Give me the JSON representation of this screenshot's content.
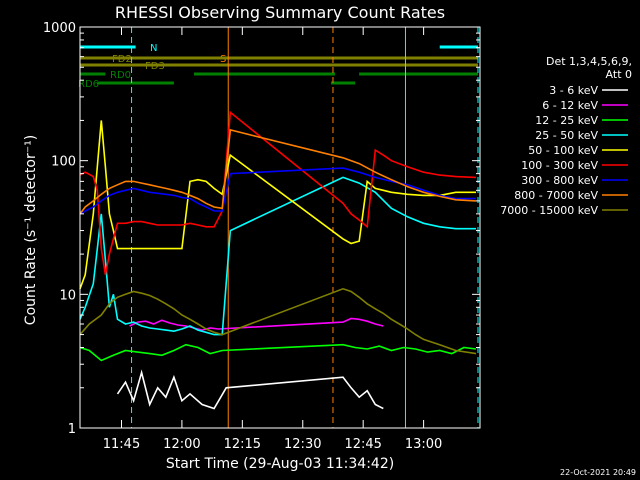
{
  "chart_data": {
    "type": "line",
    "title": "RHESSI Observing Summary Count Rates",
    "xlabel": "Start Time (29-Aug-03 11:34:42)",
    "ylabel": "Count Rate (s⁻¹ detector⁻¹)",
    "footer_date": "22-Oct-2021 20:49",
    "yscale": "log",
    "ylim": [
      1,
      1000
    ],
    "xlim": [
      "11:34:42",
      "13:14:00"
    ],
    "x_ticks": [
      "11:45",
      "12:00",
      "12:15",
      "12:30",
      "12:45",
      "13:00"
    ],
    "y_ticks": [
      "1",
      "10",
      "100",
      "1000"
    ],
    "legend": {
      "placement": "right",
      "header": [
        "Det 1,3,4,5,6,9,",
        "Att 0"
      ]
    },
    "flags": [
      {
        "label": "N",
        "color": "#00ffff",
        "segments": [
          [
            "11:34:42",
            "11:48:30"
          ],
          [
            "13:04:00",
            "13:13:30"
          ]
        ]
      },
      {
        "label": "S",
        "color": "#ff8000",
        "segments": [
          [
            "12:12:00",
            "12:37:30"
          ]
        ]
      },
      {
        "label": "FD2",
        "color": "#808000",
        "segments": [
          [
            "11:34:42",
            "13:13:30"
          ]
        ]
      },
      {
        "label": "FD3",
        "color": "#808000",
        "segments": [
          [
            "11:34:42",
            "13:13:30"
          ]
        ]
      },
      {
        "label": "RD0",
        "color": "#008000",
        "segments": [
          [
            "11:34:42",
            "11:41:00"
          ],
          [
            "12:03:00",
            "12:38:00"
          ],
          [
            "12:44:00",
            "13:13:30"
          ]
        ]
      },
      {
        "label": "RD6",
        "color": "#008000",
        "segments": [
          [
            "11:39:00",
            "11:58:00"
          ],
          [
            "12:37:00",
            "12:43:00"
          ]
        ]
      }
    ],
    "vertical_markers": [
      {
        "time": "11:34:42",
        "color": "#00ffff",
        "style": "solid"
      },
      {
        "time": "11:47:30",
        "color": "#00ffff",
        "style": "dashed"
      },
      {
        "time": "12:11:30",
        "color": "#ff8000",
        "style": "solid"
      },
      {
        "time": "12:37:30",
        "color": "#ff8000",
        "style": "dashed"
      },
      {
        "time": "12:55:30",
        "color": "#00ffff",
        "style": "solid"
      },
      {
        "time": "13:13:30",
        "color": "#00ffff",
        "style": "dashed"
      }
    ],
    "series": [
      {
        "name": "3 - 6 keV",
        "color": "#ffffff",
        "x": [
          "11:44:00",
          "11:46:00",
          "11:48:00",
          "11:50:00",
          "11:52:00",
          "11:54:00",
          "11:56:00",
          "11:58:00",
          "12:00:00",
          "12:02:00",
          "12:05:00",
          "12:08:00",
          "12:11:00",
          "12:40:00",
          "12:42:00",
          "12:44:00",
          "12:46:00",
          "12:48:00",
          "12:50:00"
        ],
        "y": [
          1.8,
          2.2,
          1.6,
          2.6,
          1.5,
          2.0,
          1.7,
          2.4,
          1.6,
          1.8,
          1.5,
          1.4,
          2.0,
          2.4,
          2.0,
          1.7,
          1.9,
          1.5,
          1.4
        ]
      },
      {
        "name": "6 - 12 keV",
        "color": "#ff00ff",
        "x": [
          "11:47:00",
          "11:49:00",
          "11:51:00",
          "11:53:00",
          "11:55:00",
          "11:57:00",
          "11:59:00",
          "12:01:00",
          "12:03:00",
          "12:05:00",
          "12:07:00",
          "12:09:00",
          "12:40:00",
          "12:42:00",
          "12:44:00",
          "12:46:00",
          "12:48:00",
          "12:50:00"
        ],
        "y": [
          5.8,
          6.2,
          6.3,
          6.0,
          6.4,
          6.1,
          5.9,
          5.8,
          5.6,
          5.4,
          5.6,
          5.5,
          6.2,
          6.6,
          6.5,
          6.3,
          6.0,
          5.8
        ]
      },
      {
        "name": "12 - 25 keV",
        "color": "#00ff00",
        "x": [
          "11:34:42",
          "11:37:00",
          "11:40:00",
          "11:43:00",
          "11:46:00",
          "11:49:00",
          "11:52:00",
          "11:55:00",
          "11:58:00",
          "12:01:00",
          "12:04:00",
          "12:07:00",
          "12:10:00",
          "12:40:00",
          "12:43:00",
          "12:46:00",
          "12:49:00",
          "12:52:00",
          "12:55:00",
          "12:58:00",
          "13:01:00",
          "13:04:00",
          "13:07:00",
          "13:10:00",
          "13:13:00"
        ],
        "y": [
          4.0,
          3.8,
          3.2,
          3.5,
          3.8,
          3.7,
          3.6,
          3.5,
          3.8,
          4.2,
          4.0,
          3.6,
          3.8,
          4.2,
          4.0,
          3.9,
          4.1,
          3.8,
          4.0,
          3.9,
          3.7,
          3.8,
          3.6,
          4.0,
          3.9
        ]
      },
      {
        "name": "25 - 50 keV",
        "color": "#00ffff",
        "x": [
          "11:34:42",
          "11:36:00",
          "11:38:00",
          "11:40:00",
          "11:41:00",
          "11:42:00",
          "11:43:00",
          "11:44:00",
          "11:46:00",
          "11:48:00",
          "11:50:00",
          "11:52:00",
          "11:54:00",
          "11:56:00",
          "11:58:00",
          "12:00:00",
          "12:02:00",
          "12:04:00",
          "12:06:00",
          "12:08:00",
          "12:10:00",
          "12:12:00",
          "12:40:00",
          "12:44:00",
          "12:48:00",
          "12:52:00",
          "12:56:00",
          "13:00:00",
          "13:04:00",
          "13:08:00",
          "13:13:00"
        ],
        "y": [
          6.5,
          8.0,
          12.0,
          40.0,
          18.0,
          8.0,
          10.0,
          6.5,
          6.0,
          6.2,
          5.8,
          5.6,
          5.5,
          5.4,
          5.3,
          5.5,
          5.8,
          5.4,
          5.2,
          5.0,
          5.0,
          30.0,
          75.0,
          68.0,
          58.0,
          44.0,
          38.0,
          34.0,
          32.0,
          31.0,
          31.0
        ]
      },
      {
        "name": "50 - 100 keV",
        "color": "#ffff00",
        "x": [
          "11:34:42",
          "11:36:00",
          "11:38:00",
          "11:39:00",
          "11:40:00",
          "11:41:00",
          "11:42:00",
          "11:43:00",
          "11:44:00",
          "11:46:00",
          "11:48:00",
          "11:50:00",
          "11:52:00",
          "11:54:00",
          "11:56:00",
          "11:58:00",
          "12:00:00",
          "12:02:00",
          "12:04:00",
          "12:06:00",
          "12:08:00",
          "12:10:00",
          "12:12:00",
          "12:40:00",
          "12:42:00",
          "12:44:00",
          "12:46:00",
          "12:48:00",
          "12:50:00",
          "12:52:00",
          "12:56:00",
          "13:00:00",
          "13:04:00",
          "13:08:00",
          "13:13:00"
        ],
        "y": [
          11,
          14,
          40,
          90,
          200,
          90,
          40,
          30,
          22,
          22,
          22,
          22,
          22,
          22,
          22,
          22,
          22,
          70,
          72,
          70,
          62,
          56,
          110,
          26,
          24,
          25,
          70,
          62,
          60,
          58,
          56,
          55,
          55,
          58,
          58
        ]
      },
      {
        "name": "100 - 300 keV",
        "color": "#ff0000",
        "x": [
          "11:34:42",
          "11:36:00",
          "11:38:00",
          "11:39:00",
          "11:40:00",
          "11:41:00",
          "11:42:00",
          "11:44:00",
          "11:46:00",
          "11:48:00",
          "11:50:00",
          "11:52:00",
          "11:54:00",
          "11:56:00",
          "11:58:00",
          "12:00:00",
          "12:02:00",
          "12:04:00",
          "12:06:00",
          "12:08:00",
          "12:10:00",
          "12:12:00",
          "12:40:00",
          "12:42:00",
          "12:44:00",
          "12:46:00",
          "12:48:00",
          "12:50:00",
          "12:52:00",
          "12:56:00",
          "13:00:00",
          "13:04:00",
          "13:08:00",
          "13:13:00"
        ],
        "y": [
          78,
          82,
          76,
          60,
          22,
          14,
          20,
          34,
          34,
          35,
          35,
          34,
          33,
          33,
          33,
          33,
          34,
          33,
          32,
          32,
          42,
          230,
          48,
          40,
          36,
          32,
          120,
          110,
          100,
          90,
          82,
          78,
          76,
          75
        ]
      },
      {
        "name": "300 - 800 keV",
        "color": "#0000ff",
        "x": [
          "11:34:42",
          "11:36:00",
          "11:38:00",
          "11:40:00",
          "11:42:00",
          "11:44:00",
          "11:46:00",
          "11:48:00",
          "11:50:00",
          "11:52:00",
          "11:54:00",
          "11:56:00",
          "11:58:00",
          "12:00:00",
          "12:02:00",
          "12:04:00",
          "12:06:00",
          "12:08:00",
          "12:10:00",
          "12:12:00",
          "12:40:00",
          "12:44:00",
          "12:48:00",
          "12:52:00",
          "12:56:00",
          "13:00:00",
          "13:04:00",
          "13:08:00",
          "13:13:00"
        ],
        "y": [
          40,
          42,
          45,
          50,
          55,
          58,
          60,
          62,
          60,
          58,
          57,
          56,
          55,
          53,
          52,
          48,
          45,
          42,
          42,
          80,
          88,
          82,
          75,
          70,
          66,
          60,
          55,
          52,
          52
        ]
      },
      {
        "name": "800 - 7000 keV",
        "color": "#ff8000",
        "x": [
          "11:34:42",
          "11:36:00",
          "11:38:00",
          "11:40:00",
          "11:42:00",
          "11:44:00",
          "11:46:00",
          "11:48:00",
          "11:50:00",
          "11:52:00",
          "11:54:00",
          "11:56:00",
          "11:58:00",
          "12:00:00",
          "12:02:00",
          "12:04:00",
          "12:06:00",
          "12:08:00",
          "12:10:00",
          "12:12:00",
          "12:40:00",
          "12:44:00",
          "12:48:00",
          "12:52:00",
          "12:56:00",
          "13:00:00",
          "13:04:00",
          "13:08:00",
          "13:13:00"
        ],
        "y": [
          40,
          45,
          50,
          56,
          62,
          66,
          70,
          70,
          68,
          66,
          64,
          62,
          60,
          58,
          55,
          52,
          48,
          45,
          44,
          170,
          105,
          95,
          82,
          72,
          64,
          58,
          54,
          51,
          50
        ]
      },
      {
        "name": "7000 - 15000 keV",
        "color": "#808000",
        "x": [
          "11:34:42",
          "11:37:00",
          "11:40:00",
          "11:42:00",
          "11:44:00",
          "11:46:00",
          "11:48:00",
          "11:50:00",
          "11:52:00",
          "11:54:00",
          "11:56:00",
          "11:58:00",
          "12:00:00",
          "12:02:00",
          "12:04:00",
          "12:06:00",
          "12:08:00",
          "12:10:00",
          "12:40:00",
          "12:42:00",
          "12:44:00",
          "12:46:00",
          "12:48:00",
          "12:50:00",
          "12:52:00",
          "12:54:00",
          "12:56:00",
          "12:58:00",
          "13:00:00",
          "13:04:00",
          "13:08:00",
          "13:13:00"
        ],
        "y": [
          5.0,
          6.0,
          7.0,
          8.5,
          9.5,
          10.0,
          10.5,
          10.2,
          9.8,
          9.2,
          8.5,
          7.8,
          7.0,
          6.5,
          6.0,
          5.5,
          5.2,
          5.0,
          11.0,
          10.5,
          9.5,
          8.5,
          7.8,
          7.2,
          6.5,
          6.0,
          5.5,
          5.0,
          4.6,
          4.2,
          3.8,
          3.6
        ]
      }
    ]
  }
}
